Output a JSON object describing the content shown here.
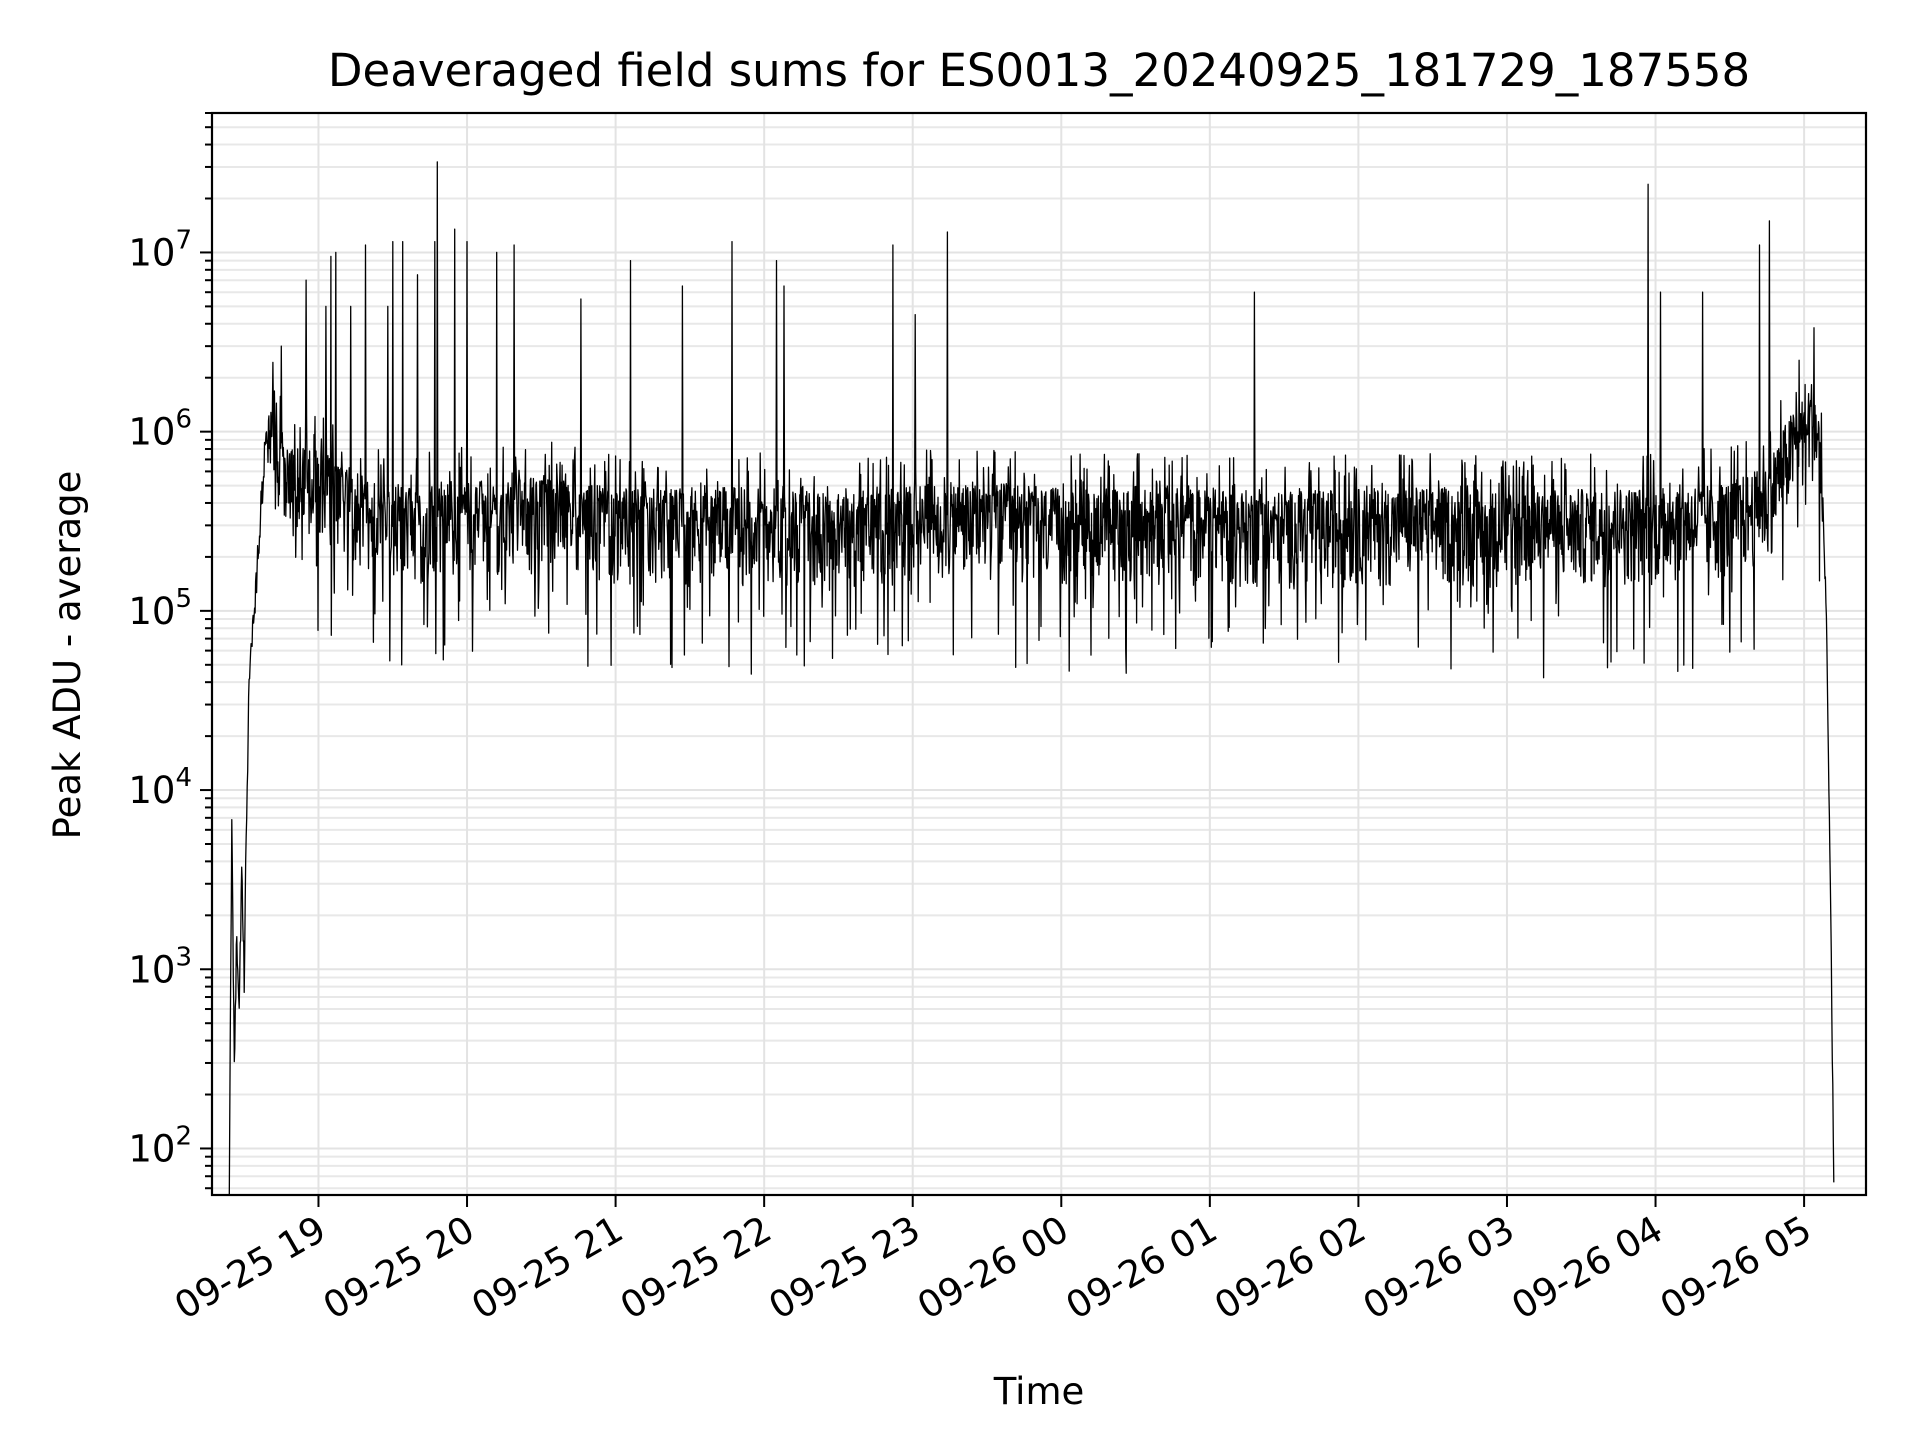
{
  "chart_data": {
    "type": "line",
    "title": "Deaveraged field sums for ES0013_20240925_181729_187558",
    "xlabel": "Time",
    "ylabel": "Peak ADU - average",
    "yscale": "log",
    "ylim": [
      55,
      60000000.0
    ],
    "xlim": [
      "2024-09-25 18:17",
      "2024-09-26 05:25"
    ],
    "grid": true,
    "legend": "none",
    "line_color": "#000000",
    "x_ticks": [
      {
        "time": "2024-09-25 19:00",
        "label": "09-25 19"
      },
      {
        "time": "2024-09-25 20:00",
        "label": "09-25 20"
      },
      {
        "time": "2024-09-25 21:00",
        "label": "09-25 21"
      },
      {
        "time": "2024-09-25 22:00",
        "label": "09-25 22"
      },
      {
        "time": "2024-09-25 23:00",
        "label": "09-25 23"
      },
      {
        "time": "2024-09-26 00:00",
        "label": "09-26 00"
      },
      {
        "time": "2024-09-26 01:00",
        "label": "09-26 01"
      },
      {
        "time": "2024-09-26 02:00",
        "label": "09-26 02"
      },
      {
        "time": "2024-09-26 03:00",
        "label": "09-26 03"
      },
      {
        "time": "2024-09-26 04:00",
        "label": "09-26 04"
      },
      {
        "time": "2024-09-26 05:00",
        "label": "09-26 05"
      }
    ],
    "y_ticks": [
      {
        "value": 100,
        "base": "10",
        "exp": "2"
      },
      {
        "value": 1000,
        "base": "10",
        "exp": "3"
      },
      {
        "value": 10000,
        "base": "10",
        "exp": "4"
      },
      {
        "value": 100000,
        "base": "10",
        "exp": "5"
      },
      {
        "value": 1000000,
        "base": "10",
        "exp": "6"
      },
      {
        "value": 10000000,
        "base": "10",
        "exp": "7"
      }
    ],
    "series": [
      {
        "points": [
          [
            "2024-09-25 18:24",
            60
          ],
          [
            "2024-09-25 18:25",
            6000
          ],
          [
            "2024-09-25 18:26",
            350
          ],
          [
            "2024-09-25 18:27",
            1500
          ],
          [
            "2024-09-25 18:28",
            700
          ],
          [
            "2024-09-25 18:29",
            3300
          ],
          [
            "2024-09-25 18:30",
            900
          ],
          [
            "2024-09-25 18:31",
            8000
          ],
          [
            "2024-09-25 18:32",
            45000
          ],
          [
            "2024-09-25 18:34",
            100000
          ],
          [
            "2024-09-25 18:36",
            250000
          ],
          [
            "2024-09-25 18:38",
            700000
          ],
          [
            "2024-09-25 18:40",
            950000
          ],
          [
            "2024-09-25 18:42",
            1100000
          ],
          [
            "2024-09-25 18:44",
            800000
          ],
          [
            "2024-09-25 18:48",
            500000
          ],
          [
            "2024-09-25 18:55",
            550000
          ],
          [
            "2024-09-25 19:05",
            450000
          ],
          [
            "2024-09-25 19:20",
            350000
          ],
          [
            "2024-09-25 19:40",
            300000
          ],
          [
            "2024-09-25 20:00",
            330000
          ],
          [
            "2024-09-25 20:30",
            360000
          ],
          [
            "2024-09-25 21:00",
            300000
          ],
          [
            "2024-09-25 21:30",
            300000
          ],
          [
            "2024-09-25 22:00",
            310000
          ],
          [
            "2024-09-25 22:30",
            280000
          ],
          [
            "2024-09-25 23:00",
            320000
          ],
          [
            "2024-09-25 23:30",
            330000
          ],
          [
            "2024-09-26 00:00",
            300000
          ],
          [
            "2024-09-26 00:30",
            310000
          ],
          [
            "2024-09-26 01:00",
            300000
          ],
          [
            "2024-09-26 01:30",
            290000
          ],
          [
            "2024-09-26 02:00",
            300000
          ],
          [
            "2024-09-26 02:30",
            310000
          ],
          [
            "2024-09-26 03:00",
            290000
          ],
          [
            "2024-09-26 03:30",
            300000
          ],
          [
            "2024-09-26 04:00",
            310000
          ],
          [
            "2024-09-26 04:30",
            330000
          ],
          [
            "2024-09-26 04:45",
            400000
          ],
          [
            "2024-09-26 04:50",
            600000
          ],
          [
            "2024-09-26 04:55",
            800000
          ],
          [
            "2024-09-26 05:00",
            1000000
          ],
          [
            "2024-09-26 05:03",
            1200000
          ],
          [
            "2024-09-26 05:05",
            1000000
          ],
          [
            "2024-09-26 05:07",
            600000
          ],
          [
            "2024-09-26 05:09",
            100000
          ],
          [
            "2024-09-26 05:10",
            10000
          ],
          [
            "2024-09-26 05:11",
            1000
          ],
          [
            "2024-09-26 05:12",
            60
          ]
        ],
        "spikes": [
          [
            "2024-09-25 18:45",
            3000000
          ],
          [
            "2024-09-25 18:55",
            7000000
          ],
          [
            "2024-09-25 19:03",
            5000000
          ],
          [
            "2024-09-25 19:05",
            9500000
          ],
          [
            "2024-09-25 19:07",
            10000000
          ],
          [
            "2024-09-25 19:13",
            5000000
          ],
          [
            "2024-09-25 19:19",
            11000000
          ],
          [
            "2024-09-25 19:28",
            5000000
          ],
          [
            "2024-09-25 19:30",
            11500000
          ],
          [
            "2024-09-25 19:34",
            11500000
          ],
          [
            "2024-09-25 19:40",
            7500000
          ],
          [
            "2024-09-25 19:47",
            11500000
          ],
          [
            "2024-09-25 19:48",
            32000000
          ],
          [
            "2024-09-25 19:55",
            13500000
          ],
          [
            "2024-09-25 20:00",
            11500000
          ],
          [
            "2024-09-25 20:12",
            10000000
          ],
          [
            "2024-09-25 20:19",
            11000000
          ],
          [
            "2024-09-25 20:46",
            5500000
          ],
          [
            "2024-09-25 21:06",
            9000000
          ],
          [
            "2024-09-25 21:27",
            6500000
          ],
          [
            "2024-09-25 21:47",
            11500000
          ],
          [
            "2024-09-25 22:05",
            9000000
          ],
          [
            "2024-09-25 22:08",
            6500000
          ],
          [
            "2024-09-25 22:52",
            11000000
          ],
          [
            "2024-09-25 23:01",
            4500000
          ],
          [
            "2024-09-25 23:14",
            13000000
          ],
          [
            "2024-09-26 01:18",
            6000000
          ],
          [
            "2024-09-26 03:57",
            24000000
          ],
          [
            "2024-09-26 04:02",
            6000000
          ],
          [
            "2024-09-26 04:19",
            6000000
          ],
          [
            "2024-09-26 04:42",
            11000000
          ],
          [
            "2024-09-26 04:46",
            15000000
          ],
          [
            "2024-09-26 04:58",
            2500000
          ],
          [
            "2024-09-26 05:04",
            3800000
          ]
        ]
      }
    ]
  }
}
